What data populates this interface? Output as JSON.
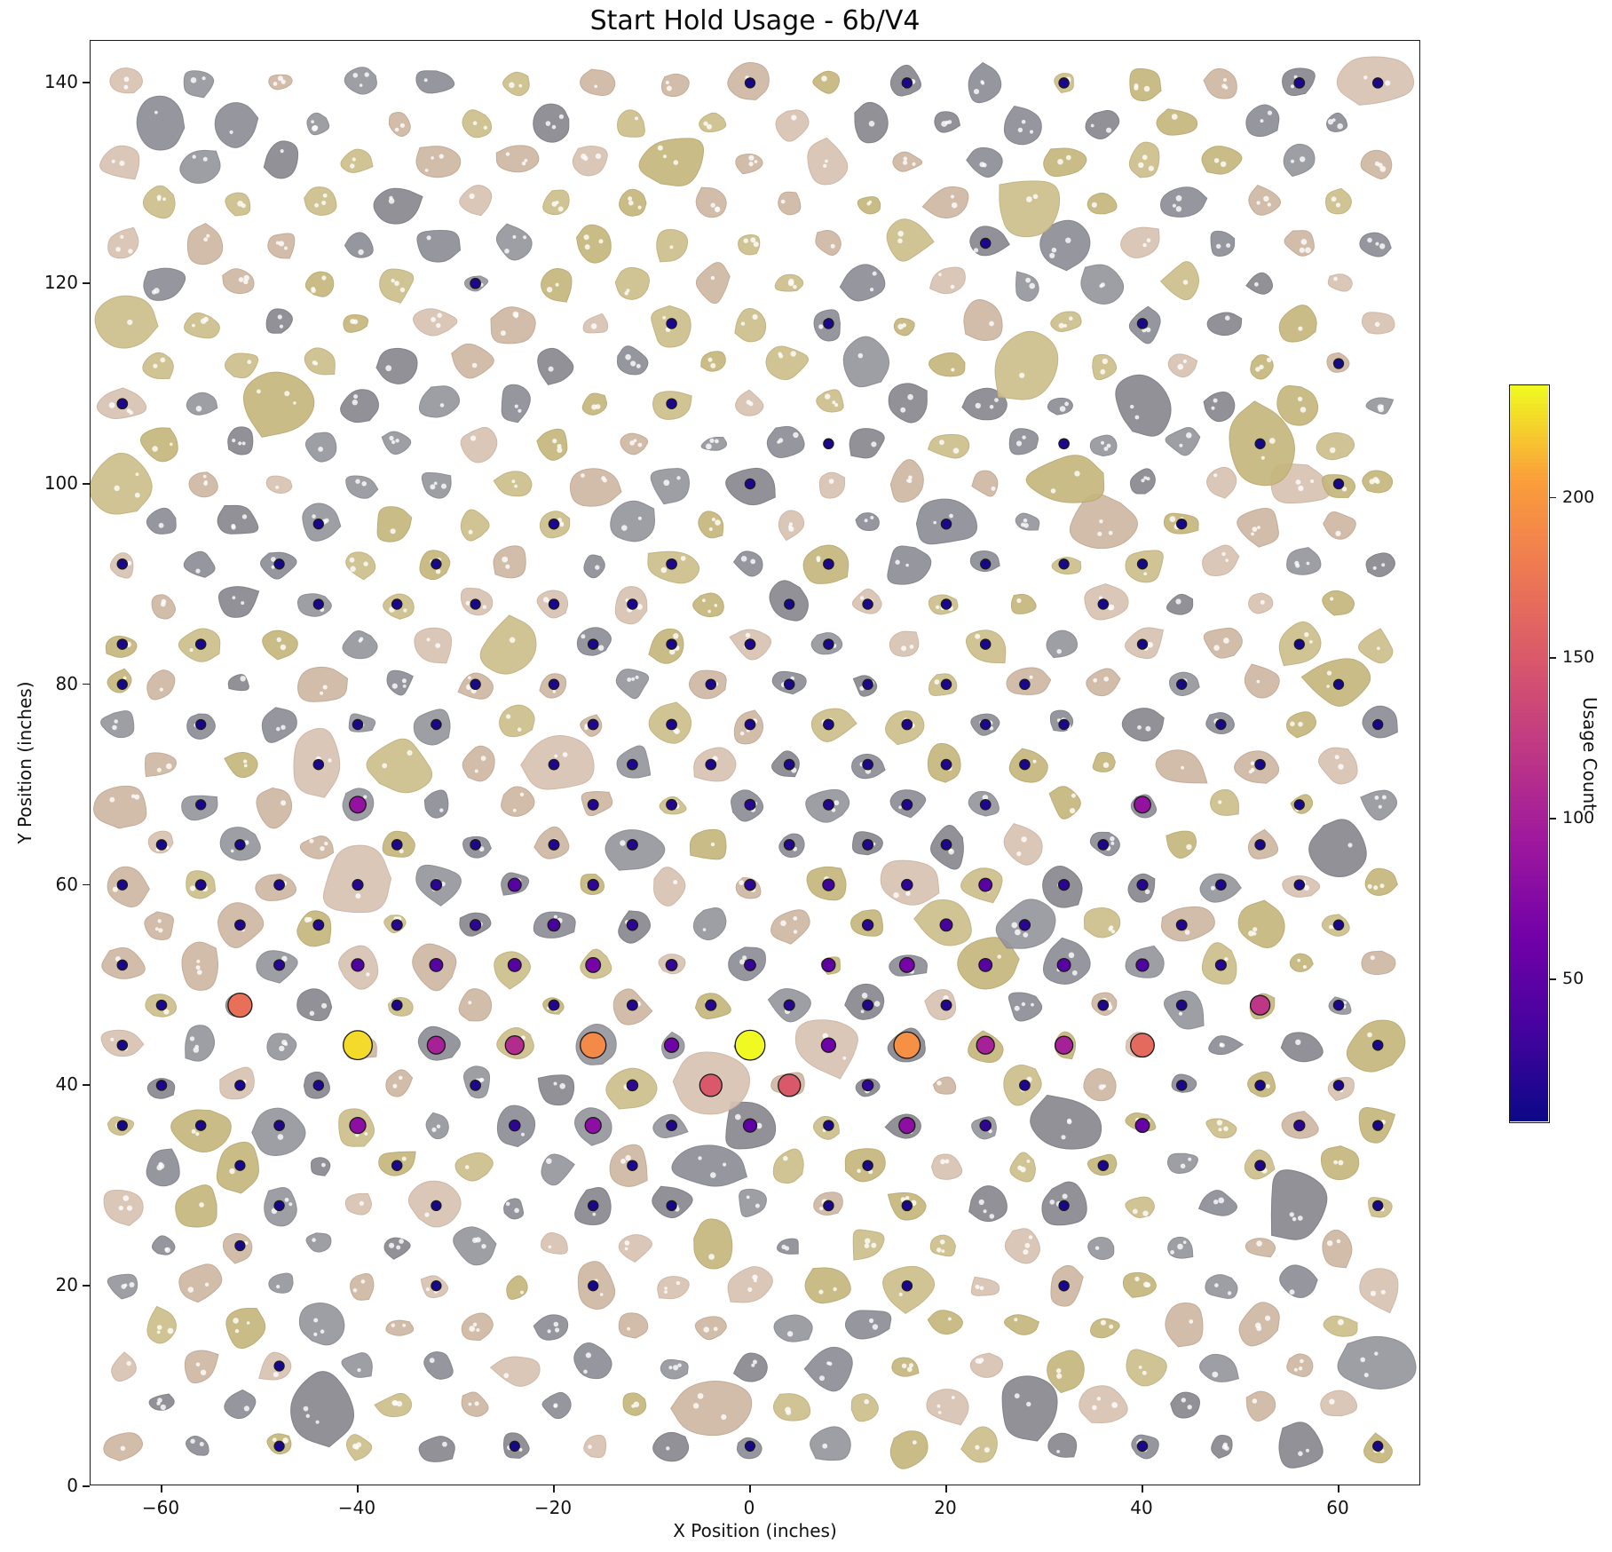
{
  "figure": {
    "window_title": "Start Hold Usage - 6b/V4"
  },
  "chart_data": {
    "type": "scatter",
    "title": "Start Hold Usage - 6b/V4",
    "xlabel": "X Position (inches)",
    "ylabel": "Y Position (inches)",
    "xlim": [
      -67.2,
      68.4
    ],
    "ylim": [
      0,
      144.2
    ],
    "x_ticks": [
      -60,
      -40,
      -20,
      0,
      20,
      40,
      60
    ],
    "y_ticks": [
      0,
      20,
      40,
      60,
      80,
      100,
      120,
      140
    ],
    "grid": false,
    "legend": "none",
    "colorbar": {
      "label": "Usage Count",
      "ticks": [
        50,
        100,
        150,
        200
      ],
      "vmin": 5,
      "vmax": 235,
      "colormap": "plasma"
    },
    "background": "photograph of a symmetric climbing board: gray, tan and khaki resin holds with white bolt holes on a white wall",
    "marker": {
      "shape": "circle",
      "edge_color": "#1a1a1a",
      "size_rule_px": "radius = 5 + 0.05 * usage"
    },
    "points_format": [
      "x_inches",
      "y_inches",
      "usage_count"
    ],
    "points": [
      [
        0,
        140,
        10
      ],
      [
        16,
        140,
        12
      ],
      [
        32,
        140,
        12
      ],
      [
        56,
        140,
        14
      ],
      [
        64,
        140,
        12
      ],
      [
        24,
        124,
        12
      ],
      [
        -28,
        120,
        14
      ],
      [
        -8,
        116,
        12
      ],
      [
        8,
        116,
        12
      ],
      [
        40,
        116,
        12
      ],
      [
        60,
        112,
        10
      ],
      [
        -64,
        108,
        14
      ],
      [
        -8,
        108,
        12
      ],
      [
        8,
        104,
        12
      ],
      [
        32,
        104,
        14
      ],
      [
        52,
        104,
        10
      ],
      [
        0,
        100,
        12
      ],
      [
        60,
        100,
        10
      ],
      [
        -44,
        96,
        10
      ],
      [
        -20,
        96,
        12
      ],
      [
        20,
        96,
        12
      ],
      [
        44,
        96,
        10
      ],
      [
        -64,
        92,
        12
      ],
      [
        -48,
        92,
        10
      ],
      [
        -32,
        92,
        10
      ],
      [
        -8,
        92,
        14
      ],
      [
        8,
        92,
        14
      ],
      [
        24,
        92,
        10
      ],
      [
        32,
        92,
        10
      ],
      [
        40,
        92,
        10
      ],
      [
        -44,
        88,
        10
      ],
      [
        -36,
        88,
        12
      ],
      [
        -28,
        88,
        10
      ],
      [
        -20,
        88,
        12
      ],
      [
        -12,
        88,
        12
      ],
      [
        4,
        88,
        10
      ],
      [
        12,
        88,
        12
      ],
      [
        20,
        88,
        12
      ],
      [
        36,
        88,
        12
      ],
      [
        -64,
        84,
        12
      ],
      [
        -56,
        84,
        12
      ],
      [
        -16,
        84,
        12
      ],
      [
        -8,
        84,
        12
      ],
      [
        0,
        84,
        14
      ],
      [
        8,
        84,
        12
      ],
      [
        24,
        84,
        12
      ],
      [
        40,
        84,
        10
      ],
      [
        56,
        84,
        10
      ],
      [
        -64,
        80,
        10
      ],
      [
        -28,
        80,
        12
      ],
      [
        -20,
        80,
        12
      ],
      [
        -4,
        80,
        12
      ],
      [
        4,
        80,
        12
      ],
      [
        12,
        80,
        12
      ],
      [
        20,
        80,
        12
      ],
      [
        28,
        80,
        12
      ],
      [
        44,
        80,
        10
      ],
      [
        60,
        80,
        10
      ],
      [
        -56,
        76,
        10
      ],
      [
        -40,
        76,
        12
      ],
      [
        -32,
        76,
        12
      ],
      [
        -16,
        76,
        14
      ],
      [
        -8,
        76,
        14
      ],
      [
        0,
        76,
        14
      ],
      [
        8,
        76,
        14
      ],
      [
        16,
        76,
        14
      ],
      [
        24,
        76,
        12
      ],
      [
        32,
        76,
        12
      ],
      [
        48,
        76,
        10
      ],
      [
        64,
        76,
        10
      ],
      [
        -44,
        72,
        12
      ],
      [
        -20,
        72,
        14
      ],
      [
        -12,
        72,
        14
      ],
      [
        -4,
        72,
        14
      ],
      [
        4,
        72,
        14
      ],
      [
        12,
        72,
        14
      ],
      [
        20,
        72,
        14
      ],
      [
        28,
        72,
        12
      ],
      [
        52,
        72,
        12
      ],
      [
        -56,
        68,
        10
      ],
      [
        -40,
        68,
        85
      ],
      [
        -16,
        68,
        16
      ],
      [
        -8,
        68,
        16
      ],
      [
        0,
        68,
        18
      ],
      [
        8,
        68,
        16
      ],
      [
        16,
        68,
        16
      ],
      [
        24,
        68,
        14
      ],
      [
        40,
        68,
        85
      ],
      [
        56,
        68,
        10
      ],
      [
        -60,
        64,
        12
      ],
      [
        -52,
        64,
        12
      ],
      [
        -36,
        64,
        14
      ],
      [
        -28,
        64,
        14
      ],
      [
        -20,
        64,
        16
      ],
      [
        -12,
        64,
        16
      ],
      [
        4,
        64,
        16
      ],
      [
        12,
        64,
        16
      ],
      [
        20,
        64,
        14
      ],
      [
        36,
        64,
        14
      ],
      [
        52,
        64,
        12
      ],
      [
        -64,
        60,
        12
      ],
      [
        -56,
        60,
        14
      ],
      [
        -48,
        60,
        14
      ],
      [
        -40,
        60,
        18
      ],
      [
        -32,
        60,
        20
      ],
      [
        -24,
        60,
        45
      ],
      [
        -16,
        60,
        22
      ],
      [
        0,
        60,
        22
      ],
      [
        8,
        60,
        30
      ],
      [
        16,
        60,
        22
      ],
      [
        24,
        60,
        45
      ],
      [
        32,
        60,
        20
      ],
      [
        40,
        60,
        18
      ],
      [
        48,
        60,
        14
      ],
      [
        56,
        60,
        12
      ],
      [
        -52,
        56,
        14
      ],
      [
        -44,
        56,
        16
      ],
      [
        -36,
        56,
        18
      ],
      [
        -28,
        56,
        20
      ],
      [
        -20,
        56,
        35
      ],
      [
        -12,
        56,
        20
      ],
      [
        12,
        56,
        20
      ],
      [
        20,
        56,
        35
      ],
      [
        28,
        56,
        20
      ],
      [
        44,
        56,
        16
      ],
      [
        60,
        56,
        12
      ],
      [
        -64,
        52,
        12
      ],
      [
        -48,
        52,
        18
      ],
      [
        -40,
        52,
        40
      ],
      [
        -32,
        52,
        45
      ],
      [
        -24,
        52,
        45
      ],
      [
        -16,
        52,
        65
      ],
      [
        -8,
        52,
        25
      ],
      [
        0,
        52,
        25
      ],
      [
        8,
        52,
        50
      ],
      [
        16,
        52,
        65
      ],
      [
        24,
        52,
        45
      ],
      [
        32,
        52,
        45
      ],
      [
        40,
        52,
        40
      ],
      [
        48,
        52,
        18
      ],
      [
        -60,
        48,
        12
      ],
      [
        -52,
        48,
        170
      ],
      [
        -36,
        48,
        14
      ],
      [
        -20,
        48,
        16
      ],
      [
        -12,
        48,
        16
      ],
      [
        -4,
        48,
        18
      ],
      [
        4,
        48,
        18
      ],
      [
        12,
        48,
        16
      ],
      [
        20,
        48,
        16
      ],
      [
        36,
        48,
        14
      ],
      [
        44,
        48,
        14
      ],
      [
        52,
        48,
        120
      ],
      [
        60,
        48,
        12
      ],
      [
        -64,
        44,
        12
      ],
      [
        -40,
        44,
        225
      ],
      [
        -32,
        44,
        100
      ],
      [
        -24,
        44,
        110
      ],
      [
        -16,
        44,
        190
      ],
      [
        -8,
        44,
        60
      ],
      [
        0,
        44,
        235
      ],
      [
        8,
        44,
        60
      ],
      [
        16,
        44,
        195
      ],
      [
        24,
        44,
        100
      ],
      [
        32,
        44,
        100
      ],
      [
        40,
        44,
        165
      ],
      [
        64,
        44,
        12
      ],
      [
        -60,
        40,
        12
      ],
      [
        -52,
        40,
        12
      ],
      [
        -44,
        40,
        12
      ],
      [
        -28,
        40,
        14
      ],
      [
        -12,
        40,
        22
      ],
      [
        -4,
        40,
        150
      ],
      [
        4,
        40,
        150
      ],
      [
        12,
        40,
        22
      ],
      [
        28,
        40,
        14
      ],
      [
        44,
        40,
        12
      ],
      [
        52,
        40,
        12
      ],
      [
        60,
        40,
        12
      ],
      [
        -64,
        36,
        10
      ],
      [
        -56,
        36,
        12
      ],
      [
        -48,
        36,
        14
      ],
      [
        -40,
        36,
        80
      ],
      [
        -24,
        36,
        22
      ],
      [
        -16,
        36,
        80
      ],
      [
        -8,
        36,
        16
      ],
      [
        0,
        36,
        50
      ],
      [
        8,
        36,
        12
      ],
      [
        16,
        36,
        80
      ],
      [
        24,
        36,
        22
      ],
      [
        40,
        36,
        55
      ],
      [
        56,
        36,
        20
      ],
      [
        64,
        36,
        10
      ],
      [
        -52,
        32,
        10
      ],
      [
        -36,
        32,
        12
      ],
      [
        -12,
        32,
        12
      ],
      [
        12,
        32,
        12
      ],
      [
        36,
        32,
        12
      ],
      [
        52,
        32,
        14
      ],
      [
        -48,
        28,
        10
      ],
      [
        -32,
        28,
        10
      ],
      [
        -16,
        28,
        12
      ],
      [
        -8,
        28,
        10
      ],
      [
        8,
        28,
        12
      ],
      [
        16,
        28,
        12
      ],
      [
        32,
        28,
        10
      ],
      [
        64,
        28,
        10
      ],
      [
        -52,
        24,
        10
      ],
      [
        -32,
        20,
        10
      ],
      [
        -16,
        20,
        10
      ],
      [
        16,
        20,
        12
      ],
      [
        32,
        20,
        12
      ],
      [
        -48,
        12,
        10
      ],
      [
        -48,
        4,
        10
      ],
      [
        -24,
        4,
        10
      ],
      [
        0,
        4,
        10
      ],
      [
        40,
        4,
        12
      ],
      [
        64,
        4,
        10
      ]
    ]
  }
}
